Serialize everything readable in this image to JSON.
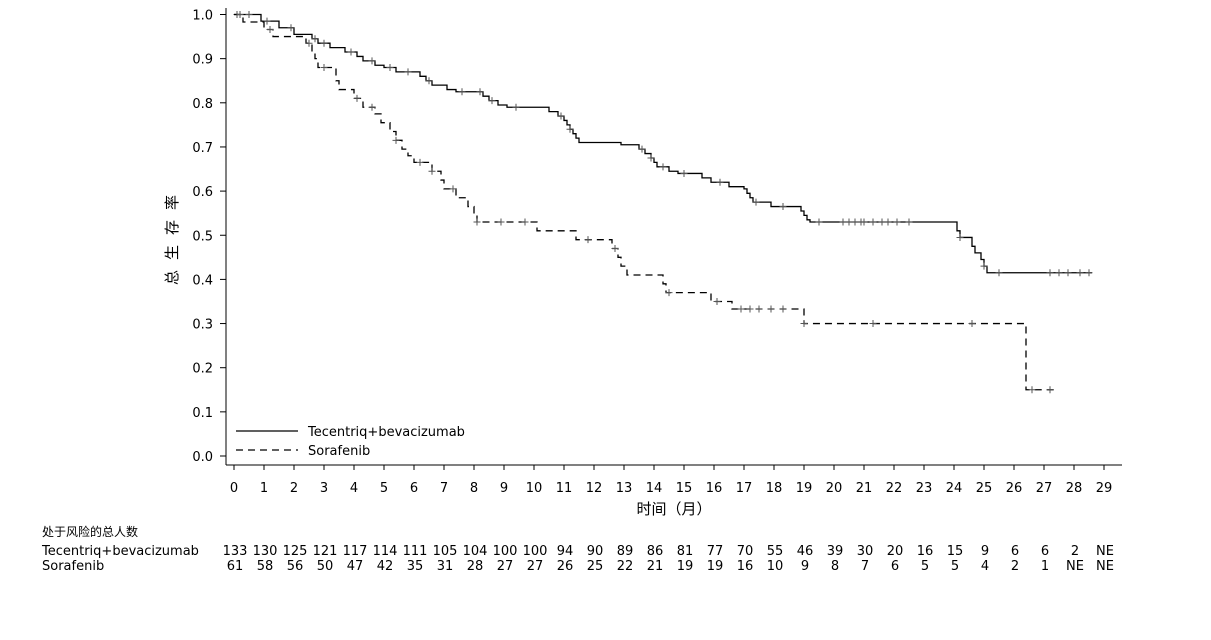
{
  "chart_data": {
    "type": "line",
    "subtype": "kaplan-meier",
    "xlabel": "时间（月）",
    "ylabel": "总生存率",
    "xlim": [
      0,
      29
    ],
    "ylim": [
      0,
      1.0
    ],
    "x_ticks": [
      "0",
      "1",
      "2",
      "3",
      "4",
      "5",
      "6",
      "7",
      "8",
      "9",
      "10",
      "11",
      "12",
      "13",
      "14",
      "15",
      "16",
      "17",
      "18",
      "19",
      "20",
      "21",
      "22",
      "23",
      "24",
      "25",
      "26",
      "27",
      "28",
      "29"
    ],
    "y_ticks": [
      "0.0",
      "0.1",
      "0.2",
      "0.3",
      "0.4",
      "0.5",
      "0.6",
      "0.7",
      "0.8",
      "0.9",
      "1.0"
    ],
    "grid": false,
    "legend_position": "bottom-left",
    "series": [
      {
        "name": "Tecentriq+bevacizumab",
        "line_style": "solid",
        "color": "#000000",
        "steps": [
          [
            0,
            1.0
          ],
          [
            0.9,
            0.985
          ],
          [
            1.5,
            0.97
          ],
          [
            2,
            0.955
          ],
          [
            2.6,
            0.945
          ],
          [
            2.8,
            0.935
          ],
          [
            3.2,
            0.925
          ],
          [
            3.7,
            0.915
          ],
          [
            4.1,
            0.905
          ],
          [
            4.3,
            0.895
          ],
          [
            4.7,
            0.885
          ],
          [
            5.0,
            0.88
          ],
          [
            5.4,
            0.87
          ],
          [
            6.2,
            0.86
          ],
          [
            6.4,
            0.85
          ],
          [
            6.6,
            0.84
          ],
          [
            7.1,
            0.83
          ],
          [
            7.4,
            0.825
          ],
          [
            8.3,
            0.815
          ],
          [
            8.5,
            0.805
          ],
          [
            8.8,
            0.795
          ],
          [
            9.1,
            0.79
          ],
          [
            10.5,
            0.78
          ],
          [
            10.8,
            0.77
          ],
          [
            11.0,
            0.76
          ],
          [
            11.1,
            0.75
          ],
          [
            11.2,
            0.74
          ],
          [
            11.3,
            0.73
          ],
          [
            11.4,
            0.72
          ],
          [
            11.5,
            0.71
          ],
          [
            12.9,
            0.705
          ],
          [
            13.5,
            0.695
          ],
          [
            13.7,
            0.685
          ],
          [
            13.9,
            0.675
          ],
          [
            14.0,
            0.665
          ],
          [
            14.1,
            0.655
          ],
          [
            14.5,
            0.645
          ],
          [
            14.8,
            0.64
          ],
          [
            15.6,
            0.63
          ],
          [
            15.9,
            0.62
          ],
          [
            16.5,
            0.61
          ],
          [
            17.0,
            0.605
          ],
          [
            17.1,
            0.595
          ],
          [
            17.2,
            0.585
          ],
          [
            17.3,
            0.575
          ],
          [
            17.9,
            0.565
          ],
          [
            18.9,
            0.555
          ],
          [
            19.0,
            0.545
          ],
          [
            19.1,
            0.535
          ],
          [
            19.2,
            0.53
          ],
          [
            24.1,
            0.51
          ],
          [
            24.2,
            0.495
          ],
          [
            24.6,
            0.475
          ],
          [
            24.7,
            0.46
          ],
          [
            24.9,
            0.445
          ],
          [
            25.0,
            0.43
          ],
          [
            25.1,
            0.415
          ]
        ],
        "x_end": 28.6,
        "censor": [
          0.1,
          0.5,
          1.1,
          1.9,
          2.7,
          3.0,
          3.9,
          4.6,
          5.2,
          5.8,
          6.5,
          7.6,
          8.2,
          8.6,
          9.4,
          10.9,
          11.2,
          13.6,
          13.9,
          14.3,
          15.0,
          16.2,
          17.4,
          18.3,
          19.5,
          20.3,
          20.5,
          20.7,
          20.9,
          21.0,
          21.3,
          21.6,
          21.8,
          22.1,
          22.5,
          24.2,
          25.0,
          25.5,
          27.2,
          27.5,
          27.8,
          28.2,
          28.5
        ],
        "at_risk": [
          "133",
          "130",
          "125",
          "121",
          "117",
          "114",
          "111",
          "105",
          "104",
          "100",
          "100",
          "94",
          "90",
          "89",
          "86",
          "81",
          "77",
          "70",
          "55",
          "46",
          "39",
          "30",
          "20",
          "16",
          "15",
          "9",
          "6",
          "6",
          "2",
          "NE"
        ]
      },
      {
        "name": "Sorafenib",
        "line_style": "dashed",
        "color": "#000000",
        "steps": [
          [
            0,
            1.0
          ],
          [
            0.3,
            0.983
          ],
          [
            1.0,
            0.966
          ],
          [
            1.3,
            0.95
          ],
          [
            2.4,
            0.935
          ],
          [
            2.6,
            0.915
          ],
          [
            2.7,
            0.9
          ],
          [
            2.8,
            0.88
          ],
          [
            3.4,
            0.85
          ],
          [
            3.5,
            0.83
          ],
          [
            4.0,
            0.81
          ],
          [
            4.3,
            0.79
          ],
          [
            4.7,
            0.775
          ],
          [
            4.9,
            0.755
          ],
          [
            5.2,
            0.735
          ],
          [
            5.4,
            0.715
          ],
          [
            5.6,
            0.695
          ],
          [
            5.8,
            0.68
          ],
          [
            6.0,
            0.665
          ],
          [
            6.6,
            0.645
          ],
          [
            6.9,
            0.625
          ],
          [
            7.0,
            0.605
          ],
          [
            7.4,
            0.585
          ],
          [
            7.8,
            0.565
          ],
          [
            8.0,
            0.545
          ],
          [
            8.1,
            0.53
          ],
          [
            10.1,
            0.51
          ],
          [
            11.4,
            0.49
          ],
          [
            12.6,
            0.47
          ],
          [
            12.8,
            0.45
          ],
          [
            12.9,
            0.43
          ],
          [
            13.1,
            0.41
          ],
          [
            14.3,
            0.39
          ],
          [
            14.4,
            0.37
          ],
          [
            15.9,
            0.35
          ],
          [
            16.6,
            0.333
          ],
          [
            19.0,
            0.3
          ],
          [
            26.4,
            0.15
          ]
        ],
        "x_end": 27.4,
        "censor": [
          0.2,
          1.2,
          2.5,
          3.0,
          4.1,
          4.6,
          5.4,
          6.2,
          6.6,
          7.3,
          8.1,
          8.9,
          9.7,
          11.8,
          12.7,
          14.5,
          16.1,
          16.9,
          17.2,
          17.5,
          17.9,
          18.3,
          19.0,
          21.3,
          24.6,
          26.6,
          27.2
        ],
        "at_risk": [
          "61",
          "58",
          "56",
          "50",
          "47",
          "42",
          "35",
          "31",
          "28",
          "27",
          "27",
          "26",
          "25",
          "22",
          "21",
          "19",
          "19",
          "16",
          "10",
          "9",
          "8",
          "7",
          "6",
          "5",
          "5",
          "4",
          "2",
          "1",
          "NE",
          "NE"
        ]
      }
    ]
  },
  "risk_table": {
    "header": "处于风险的总人数"
  }
}
